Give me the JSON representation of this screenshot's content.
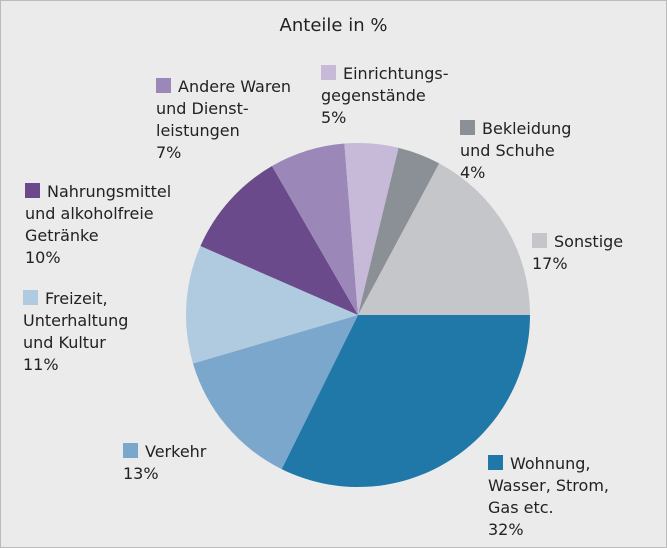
{
  "chart_data": {
    "type": "pie",
    "title": "Anteile in %",
    "categories": [
      "Wohnung,\nWasser, Strom,\nGas etc.",
      "Verkehr",
      "Freizeit,\nUnterhaltung\nund Kultur",
      "Nahrungsmittel\nund alkoholfreie\nGetränke",
      "Andere Waren\nund Dienst-\nleistungen",
      "Einrichtungs-\ngegenstände",
      "Bekleidung\nund Schuhe",
      "Sonstige"
    ],
    "values": [
      32,
      13,
      11,
      10,
      7,
      5,
      4,
      17
    ],
    "value_labels": [
      "32%",
      "13%",
      "11%",
      "10%",
      "7%",
      "5%",
      "4%",
      "17%"
    ],
    "colors": [
      "#1f78a8",
      "#7aa7cb",
      "#b0cbe0",
      "#6a4a8a",
      "#9c88b8",
      "#c7b9d8",
      "#8a9096",
      "#c4c6c9"
    ]
  }
}
